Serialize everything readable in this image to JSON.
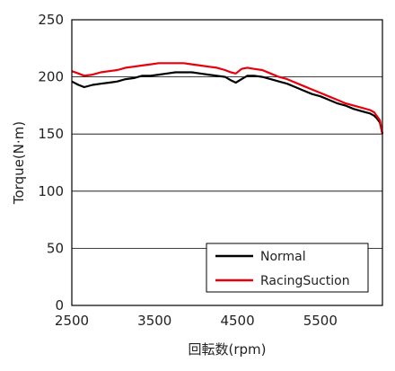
{
  "chart_data": {
    "type": "line",
    "xlabel": "回転数(rpm)",
    "ylabel": "Torque(N·m)",
    "xlim": [
      2500,
      6250
    ],
    "ylim": [
      0,
      250
    ],
    "xticks": [
      2500,
      3500,
      4500,
      5500
    ],
    "xtick_labels": [
      "2500",
      "3500",
      "4500",
      "5500"
    ],
    "yticks": [
      0,
      50,
      100,
      150,
      200,
      250
    ],
    "ytick_labels": [
      "0",
      "50",
      "100",
      "150",
      "200",
      "250"
    ],
    "grid": "horizontal",
    "legend_position": "bottom-right",
    "series": [
      {
        "name": "Normal",
        "color": "#000000",
        "x": [
          2500,
          2580,
          2650,
          2750,
          2850,
          2950,
          3050,
          3150,
          3250,
          3350,
          3450,
          3550,
          3650,
          3750,
          3850,
          3950,
          4050,
          4150,
          4250,
          4350,
          4420,
          4480,
          4550,
          4620,
          4700,
          4800,
          4900,
          5000,
          5100,
          5200,
          5300,
          5400,
          5500,
          5600,
          5700,
          5800,
          5900,
          6000,
          6100,
          6150,
          6180,
          6220,
          6250
        ],
        "y": [
          196,
          193,
          191,
          193,
          194,
          195,
          196,
          198,
          199,
          201,
          201,
          202,
          203,
          204,
          204,
          204,
          203,
          202,
          201,
          200,
          197,
          195,
          198,
          201,
          201,
          200,
          198,
          196,
          194,
          191,
          188,
          185,
          183,
          180,
          177,
          175,
          172,
          170,
          168,
          166,
          164,
          160,
          150
        ]
      },
      {
        "name": "RacingSuction",
        "color": "#e8000b",
        "x": [
          2500,
          2580,
          2650,
          2750,
          2850,
          2950,
          3050,
          3150,
          3250,
          3350,
          3450,
          3550,
          3650,
          3750,
          3850,
          3950,
          4050,
          4150,
          4250,
          4350,
          4420,
          4480,
          4550,
          4620,
          4700,
          4800,
          4900,
          5000,
          5100,
          5200,
          5300,
          5400,
          5500,
          5600,
          5700,
          5800,
          5900,
          6000,
          6100,
          6150,
          6180,
          6220,
          6250
        ],
        "y": [
          205,
          203,
          201,
          202,
          204,
          205,
          206,
          208,
          209,
          210,
          211,
          212,
          212,
          212,
          212,
          211,
          210,
          209,
          208,
          206,
          204,
          203,
          207,
          208,
          207,
          206,
          203,
          200,
          198,
          195,
          192,
          189,
          186,
          183,
          180,
          177,
          175,
          173,
          171,
          169,
          166,
          162,
          150
        ]
      }
    ]
  }
}
